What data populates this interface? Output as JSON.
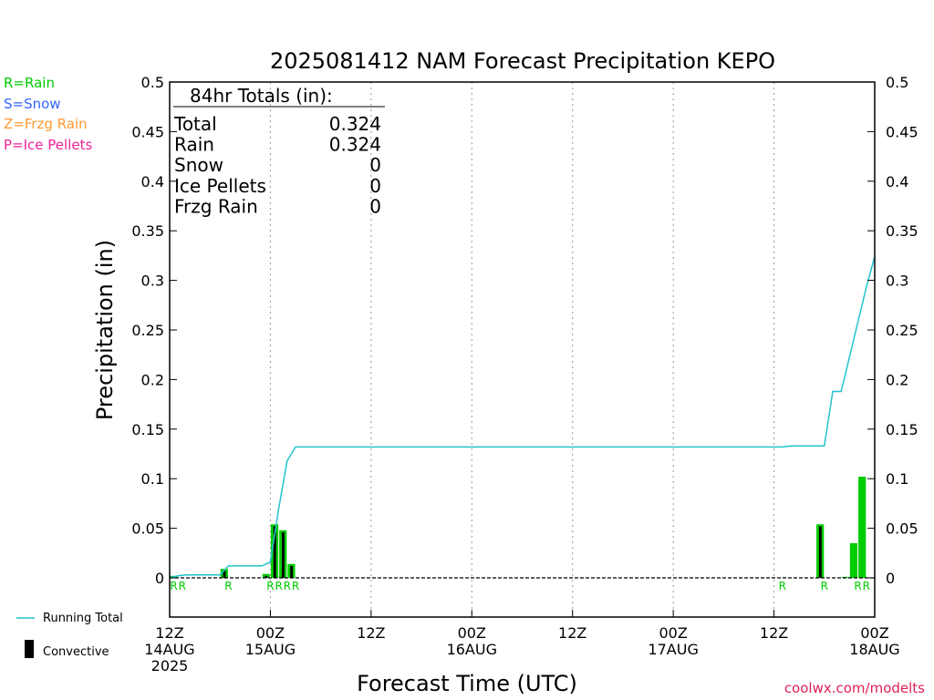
{
  "title": "2025081412 NAM Forecast Precipitation KEPO",
  "legend": {
    "rain": "R=Rain",
    "snow": "S=Snow",
    "frzg": "Z=Frzg Rain",
    "ice": "P=Ice Pellets",
    "running_total": "Running Total",
    "convective": "Convective"
  },
  "colors": {
    "rain": "#00cc00",
    "snow": "#3366ff",
    "frzg": "#ff9933",
    "ice": "#ee2299",
    "running_total": "#22c4cc",
    "convective": "#000000",
    "credit": "#dd2255"
  },
  "totals": {
    "header": "84hr Totals (in):",
    "rows": [
      {
        "label": "Total",
        "value": "0.324"
      },
      {
        "label": "Rain",
        "value": "0.324"
      },
      {
        "label": "Snow",
        "value": "0"
      },
      {
        "label": "Ice Pellets",
        "value": "0"
      },
      {
        "label": "Frzg Rain",
        "value": "0"
      }
    ]
  },
  "credit": "coolwx.com/modelts",
  "chart_data": {
    "type": "bar",
    "title": "2025081412 NAM Forecast Precipitation KEPO",
    "xlabel": "Forecast Time (UTC)",
    "ylabel": "Precipitation (in)",
    "xlim": [
      0,
      84
    ],
    "ylim": [
      0,
      0.5
    ],
    "yticks": [
      0,
      0.05,
      0.1,
      0.15,
      0.2,
      0.25,
      0.3,
      0.35,
      0.4,
      0.45,
      0.5
    ],
    "ytick_labels": [
      "0",
      "0.05",
      "0.1",
      "0.15",
      "0.2",
      "0.25",
      "0.3",
      "0.35",
      "0.4",
      "0.45",
      "0.5"
    ],
    "xticks": [
      {
        "hour": 0,
        "lines": [
          "12Z",
          "14AUG",
          "2025"
        ]
      },
      {
        "hour": 12,
        "lines": [
          "00Z",
          "15AUG"
        ]
      },
      {
        "hour": 24,
        "lines": [
          "12Z"
        ]
      },
      {
        "hour": 36,
        "lines": [
          "00Z",
          "16AUG"
        ]
      },
      {
        "hour": 48,
        "lines": [
          "12Z"
        ]
      },
      {
        "hour": 60,
        "lines": [
          "00Z",
          "17AUG"
        ]
      },
      {
        "hour": 72,
        "lines": [
          "12Z"
        ]
      },
      {
        "hour": 84,
        "lines": [
          "00Z",
          "18AUG"
        ]
      }
    ],
    "grid": "vertical dotted",
    "bars": [
      {
        "hour": 1,
        "value": 0.002,
        "convective": 0
      },
      {
        "hour": 7,
        "value": 0.009,
        "convective": 0.007
      },
      {
        "hour": 12,
        "value": 0.004,
        "convective": 0.002
      },
      {
        "hour": 13,
        "value": 0.054,
        "convective": 0.052
      },
      {
        "hour": 14,
        "value": 0.048,
        "convective": 0.046
      },
      {
        "hour": 15,
        "value": 0.014,
        "convective": 0.012
      },
      {
        "hour": 82,
        "value": 0.035,
        "convective": 0
      },
      {
        "hour": 83,
        "value": 0.102,
        "convective": 0
      },
      {
        "hour": 81,
        "value": 0.001,
        "convective": 0
      },
      {
        "hour": 78,
        "value": 0.054,
        "convective": 0.052
      }
    ],
    "type_markers": [
      {
        "hour": 0.5,
        "label": "R"
      },
      {
        "hour": 1.5,
        "label": "R"
      },
      {
        "hour": 7,
        "label": "R"
      },
      {
        "hour": 12,
        "label": "R"
      },
      {
        "hour": 13,
        "label": "R"
      },
      {
        "hour": 14,
        "label": "R"
      },
      {
        "hour": 15,
        "label": "R"
      },
      {
        "hour": 73,
        "label": "R"
      },
      {
        "hour": 78,
        "label": "R"
      },
      {
        "hour": 82,
        "label": "R"
      },
      {
        "hour": 83,
        "label": "R"
      }
    ],
    "running_total": {
      "name": "Running Total",
      "x": [
        0,
        1,
        2,
        3,
        4,
        5,
        6,
        7,
        8,
        9,
        10,
        11,
        12,
        13,
        14,
        15,
        16,
        72,
        73,
        74,
        75,
        76,
        77,
        78,
        79,
        80,
        81,
        82,
        83,
        84
      ],
      "y": [
        0.0,
        0.002,
        0.003,
        0.003,
        0.003,
        0.003,
        0.003,
        0.012,
        0.012,
        0.012,
        0.012,
        0.012,
        0.016,
        0.07,
        0.118,
        0.132,
        0.132,
        0.132,
        0.132,
        0.133,
        0.133,
        0.133,
        0.133,
        0.133,
        0.188,
        0.188,
        0.223,
        0.258,
        0.293,
        0.324
      ]
    }
  }
}
